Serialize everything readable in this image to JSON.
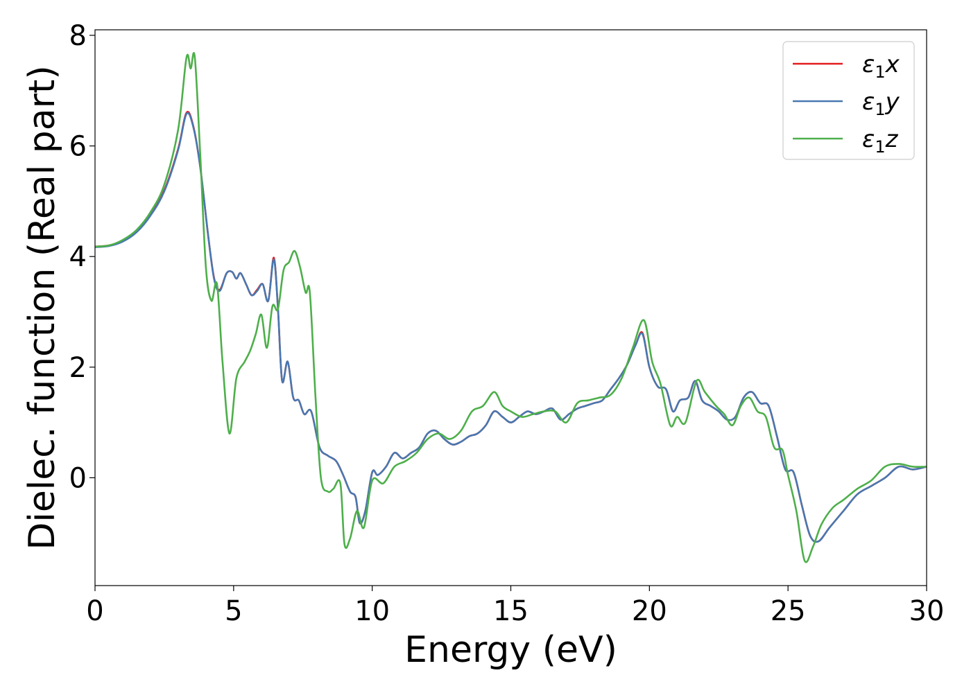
{
  "chart_data": {
    "type": "line",
    "xlabel": "Energy (eV)",
    "ylabel": "Dielec. function (Real part)",
    "xlim": [
      0,
      30
    ],
    "ylim": [
      -1.95,
      8.1
    ],
    "xticks": [
      0,
      5,
      10,
      15,
      20,
      25,
      30
    ],
    "xtick_labels": [
      "0",
      "5",
      "10",
      "15",
      "20",
      "25",
      "30"
    ],
    "yticks": [
      0,
      2,
      4,
      6,
      8
    ],
    "ytick_labels": [
      "0",
      "2",
      "4",
      "6",
      "8"
    ],
    "grid": false,
    "legend_position": "top-right",
    "series": [
      {
        "name": "ε₁x",
        "legend_main": "ε",
        "legend_sub": "1",
        "legend_var": "x",
        "color": "#e41a1c",
        "x": [
          0,
          0.5,
          1,
          1.5,
          2,
          2.5,
          3,
          3.3,
          3.55,
          3.8,
          4.1,
          4.3,
          4.5,
          4.75,
          4.95,
          5.1,
          5.25,
          5.45,
          5.65,
          5.85,
          6.05,
          6.25,
          6.45,
          6.6,
          6.75,
          6.95,
          7.15,
          7.35,
          7.55,
          7.8,
          8.1,
          8.4,
          8.7,
          8.95,
          9.2,
          9.4,
          9.55,
          9.75,
          10.0,
          10.2,
          10.5,
          10.8,
          11.1,
          11.4,
          11.7,
          12.0,
          12.3,
          12.6,
          12.9,
          13.2,
          13.5,
          13.8,
          14.1,
          14.4,
          14.7,
          15.0,
          15.3,
          15.6,
          15.9,
          16.2,
          16.5,
          16.8,
          17.1,
          17.4,
          17.7,
          18.0,
          18.3,
          18.6,
          18.9,
          19.2,
          19.5,
          19.75,
          20.0,
          20.3,
          20.6,
          20.85,
          21.1,
          21.4,
          21.65,
          21.9,
          22.2,
          22.5,
          22.8,
          23.1,
          23.4,
          23.7,
          24.0,
          24.3,
          24.6,
          24.9,
          25.2,
          25.5,
          25.8,
          26.1,
          26.5,
          27.0,
          27.5,
          28.0,
          28.5,
          29.0,
          29.5,
          30.0
        ],
        "y": [
          4.18,
          4.2,
          4.28,
          4.45,
          4.75,
          5.2,
          5.95,
          6.6,
          6.35,
          5.6,
          4.3,
          3.6,
          3.4,
          3.7,
          3.72,
          3.6,
          3.7,
          3.5,
          3.3,
          3.4,
          3.5,
          3.2,
          3.98,
          3.05,
          1.75,
          2.1,
          1.45,
          1.4,
          1.15,
          1.2,
          0.55,
          0.4,
          0.3,
          0.05,
          -0.25,
          -0.35,
          -0.82,
          -0.6,
          0.1,
          0.05,
          0.2,
          0.45,
          0.35,
          0.45,
          0.55,
          0.8,
          0.85,
          0.7,
          0.6,
          0.65,
          0.75,
          0.8,
          0.95,
          1.2,
          1.1,
          1.0,
          1.1,
          1.2,
          1.15,
          1.2,
          1.25,
          1.05,
          1.15,
          1.25,
          1.3,
          1.35,
          1.4,
          1.6,
          1.8,
          2.05,
          2.4,
          2.62,
          2.0,
          1.65,
          1.6,
          1.2,
          1.4,
          1.45,
          1.75,
          1.4,
          1.3,
          1.2,
          1.05,
          1.1,
          1.45,
          1.55,
          1.35,
          1.3,
          0.75,
          0.15,
          0.1,
          -0.5,
          -1.05,
          -1.15,
          -0.9,
          -0.6,
          -0.3,
          -0.15,
          0.0,
          0.2,
          0.15,
          0.2
        ]
      },
      {
        "name": "ε₁y",
        "legend_main": "ε",
        "legend_sub": "1",
        "legend_var": "y",
        "color": "#4878b0",
        "x": [
          0,
          0.5,
          1,
          1.5,
          2,
          2.5,
          3,
          3.3,
          3.55,
          3.8,
          4.1,
          4.3,
          4.5,
          4.75,
          4.95,
          5.1,
          5.25,
          5.45,
          5.65,
          5.85,
          6.05,
          6.25,
          6.45,
          6.6,
          6.75,
          6.95,
          7.15,
          7.35,
          7.55,
          7.8,
          8.1,
          8.4,
          8.7,
          8.95,
          9.2,
          9.4,
          9.55,
          9.75,
          10.0,
          10.2,
          10.5,
          10.8,
          11.1,
          11.4,
          11.7,
          12.0,
          12.3,
          12.6,
          12.9,
          13.2,
          13.5,
          13.8,
          14.1,
          14.4,
          14.7,
          15.0,
          15.3,
          15.6,
          15.9,
          16.2,
          16.5,
          16.8,
          17.1,
          17.4,
          17.7,
          18.0,
          18.3,
          18.6,
          18.9,
          19.2,
          19.5,
          19.75,
          20.0,
          20.3,
          20.6,
          20.85,
          21.1,
          21.4,
          21.65,
          21.9,
          22.2,
          22.5,
          22.8,
          23.1,
          23.4,
          23.7,
          24.0,
          24.3,
          24.6,
          24.9,
          25.2,
          25.5,
          25.8,
          26.1,
          26.5,
          27.0,
          27.5,
          28.0,
          28.5,
          29.0,
          29.5,
          30.0
        ],
        "y": [
          4.17,
          4.19,
          4.27,
          4.44,
          4.74,
          5.18,
          5.93,
          6.58,
          6.33,
          5.6,
          4.3,
          3.58,
          3.38,
          3.7,
          3.72,
          3.6,
          3.7,
          3.5,
          3.3,
          3.38,
          3.5,
          3.2,
          3.95,
          3.05,
          1.75,
          2.1,
          1.45,
          1.4,
          1.15,
          1.2,
          0.55,
          0.4,
          0.3,
          0.05,
          -0.25,
          -0.35,
          -0.82,
          -0.6,
          0.1,
          0.05,
          0.2,
          0.45,
          0.35,
          0.45,
          0.55,
          0.8,
          0.85,
          0.7,
          0.6,
          0.65,
          0.75,
          0.8,
          0.95,
          1.2,
          1.1,
          1.0,
          1.1,
          1.2,
          1.15,
          1.2,
          1.25,
          1.05,
          1.15,
          1.25,
          1.3,
          1.35,
          1.4,
          1.6,
          1.8,
          2.05,
          2.4,
          2.6,
          2.0,
          1.65,
          1.6,
          1.2,
          1.4,
          1.45,
          1.75,
          1.4,
          1.3,
          1.2,
          1.05,
          1.1,
          1.45,
          1.55,
          1.35,
          1.3,
          0.75,
          0.15,
          0.1,
          -0.5,
          -1.05,
          -1.15,
          -0.9,
          -0.6,
          -0.3,
          -0.15,
          0.0,
          0.2,
          0.15,
          0.2
        ]
      },
      {
        "name": "ε₁z",
        "legend_main": "ε",
        "legend_sub": "1",
        "legend_var": "z",
        "color": "#4daf4a",
        "x": [
          0,
          0.5,
          1,
          1.5,
          2,
          2.5,
          3,
          3.3,
          3.45,
          3.6,
          3.8,
          4.0,
          4.2,
          4.4,
          4.6,
          4.85,
          5.1,
          5.4,
          5.6,
          5.8,
          6.0,
          6.2,
          6.4,
          6.6,
          6.8,
          7.0,
          7.2,
          7.4,
          7.6,
          7.75,
          7.95,
          8.15,
          8.4,
          8.6,
          8.85,
          9.0,
          9.2,
          9.45,
          9.7,
          10.0,
          10.4,
          10.8,
          11.2,
          11.6,
          12.0,
          12.4,
          12.8,
          13.2,
          13.6,
          14.0,
          14.4,
          14.7,
          15.0,
          15.4,
          15.8,
          16.2,
          16.6,
          17.0,
          17.4,
          17.8,
          18.2,
          18.6,
          19.0,
          19.4,
          19.8,
          20.1,
          20.4,
          20.75,
          21.0,
          21.3,
          21.7,
          22.0,
          22.4,
          22.7,
          23.0,
          23.3,
          23.6,
          23.9,
          24.2,
          24.5,
          24.8,
          25.0,
          25.3,
          25.6,
          25.9,
          26.2,
          26.6,
          27.0,
          27.5,
          28.0,
          28.5,
          29.0,
          29.5,
          30.0
        ],
        "y": [
          4.18,
          4.2,
          4.3,
          4.48,
          4.8,
          5.3,
          6.3,
          7.6,
          7.4,
          7.6,
          5.8,
          3.8,
          3.2,
          3.5,
          2.1,
          0.8,
          1.8,
          2.1,
          2.3,
          2.6,
          2.95,
          2.35,
          3.1,
          3.05,
          3.75,
          3.9,
          4.1,
          3.8,
          3.35,
          3.35,
          1.5,
          0.0,
          -0.25,
          -0.2,
          -0.1,
          -1.2,
          -1.1,
          -0.6,
          -0.9,
          -0.05,
          -0.1,
          0.2,
          0.3,
          0.45,
          0.7,
          0.8,
          0.7,
          0.85,
          1.2,
          1.3,
          1.55,
          1.3,
          1.2,
          1.1,
          1.15,
          1.2,
          1.2,
          1.0,
          1.35,
          1.4,
          1.45,
          1.5,
          1.8,
          2.35,
          2.85,
          2.1,
          1.7,
          0.95,
          1.1,
          1.0,
          1.75,
          1.55,
          1.3,
          1.15,
          0.95,
          1.3,
          1.45,
          1.2,
          1.1,
          0.55,
          0.5,
          0.05,
          -0.6,
          -1.5,
          -1.25,
          -0.85,
          -0.55,
          -0.4,
          -0.2,
          -0.05,
          0.2,
          0.25,
          0.2,
          0.2
        ]
      }
    ]
  }
}
